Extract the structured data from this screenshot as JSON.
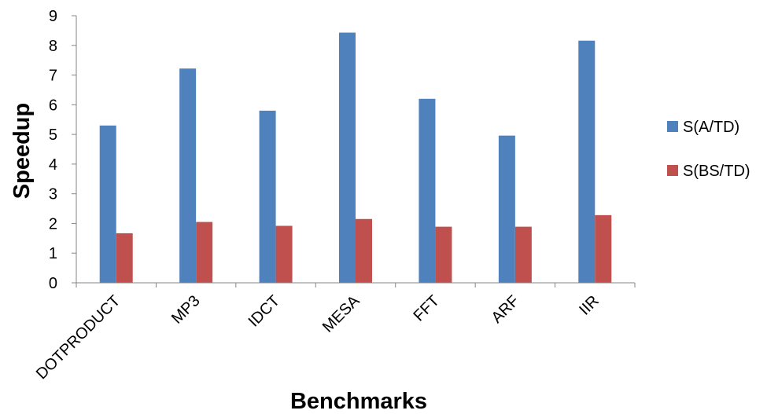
{
  "chart_data": {
    "type": "bar",
    "title": "",
    "xlabel": "Benchmarks",
    "ylabel": "Speedup",
    "categories": [
      "DOTPRODUCT",
      "MP3",
      "IDCT",
      "MESA",
      "FFT",
      "ARF",
      "IIR"
    ],
    "series": [
      {
        "name": "S(A/TD)",
        "color": "#4F81BD",
        "values": [
          5.3,
          7.22,
          5.8,
          8.43,
          6.2,
          4.96,
          8.16
        ]
      },
      {
        "name": "S(BS/TD)",
        "color": "#C0504D",
        "values": [
          1.67,
          2.05,
          1.92,
          2.15,
          1.89,
          1.89,
          2.28
        ]
      }
    ],
    "ylim": [
      0,
      9
    ],
    "yticks": [
      0,
      1,
      2,
      3,
      4,
      5,
      6,
      7,
      8,
      9
    ],
    "grid": false,
    "legend": "right"
  }
}
